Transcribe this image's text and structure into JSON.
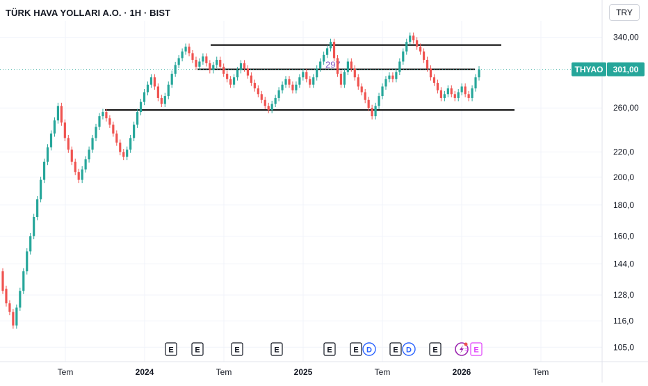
{
  "header": {
    "title": "TÜRK HAVA YOLLARI A.O. · 1H · BIST",
    "currency": "TRY"
  },
  "price_badge": {
    "symbol": "THYAO",
    "value": "301,00",
    "color": "#26a69a"
  },
  "colors": {
    "up": "#26a69a",
    "down": "#ef5350",
    "grid": "#f0f3fa",
    "text": "#131722",
    "line": "#000000",
    "event_dividend": "#2962ff",
    "event_split": "#e040fb"
  },
  "chart_data": {
    "type": "candlestick",
    "scale": "log",
    "ylim": [
      101,
      356
    ],
    "y_ticks": [
      {
        "value": 340,
        "label": "340,00"
      },
      {
        "value": 260,
        "label": "260,00"
      },
      {
        "value": 220,
        "label": "220,0"
      },
      {
        "value": 200,
        "label": "200,0"
      },
      {
        "value": 180,
        "label": "180,0"
      },
      {
        "value": 160,
        "label": "160,0"
      },
      {
        "value": 144,
        "label": "144,0"
      },
      {
        "value": 128,
        "label": "128,0"
      },
      {
        "value": 116,
        "label": "116,0"
      },
      {
        "value": 105,
        "label": "105,0"
      }
    ],
    "x_ticks": [
      {
        "date": "2023-07",
        "label": "Tem"
      },
      {
        "date": "2024-01",
        "label": "2024"
      },
      {
        "date": "2024-07",
        "label": "Tem"
      },
      {
        "date": "2025-01",
        "label": "2025"
      },
      {
        "date": "2025-07",
        "label": "Tem"
      },
      {
        "date": "2026-01",
        "label": "2026"
      },
      {
        "date": "2026-07",
        "label": "Tem"
      }
    ],
    "last_price": 301,
    "annotation": "297",
    "trendlines": [
      {
        "from": "2024-06",
        "to": "2026-04",
        "value": 330
      },
      {
        "from": "2024-05",
        "to": "2026-02",
        "value": 301
      },
      {
        "from": "2023-10",
        "to": "2026-05",
        "value": 258
      }
    ],
    "events": [
      {
        "date": "2024-03",
        "type": "E",
        "label": "E"
      },
      {
        "date": "2024-05",
        "type": "E",
        "label": "E"
      },
      {
        "date": "2024-08",
        "type": "E",
        "label": "E"
      },
      {
        "date": "2024-11",
        "type": "E",
        "label": "E"
      },
      {
        "date": "2025-03",
        "type": "E",
        "label": "E"
      },
      {
        "date": "2025-05",
        "type": "E",
        "label": "E"
      },
      {
        "date": "2025-06",
        "type": "D",
        "label": "D"
      },
      {
        "date": "2025-08",
        "type": "E",
        "label": "E"
      },
      {
        "date": "2025-09",
        "type": "D",
        "label": "D"
      },
      {
        "date": "2025-11",
        "type": "E",
        "label": "E"
      },
      {
        "date": "2026-01",
        "type": "S",
        "label": ""
      },
      {
        "date": "2026-02",
        "type": "E2",
        "label": "E"
      }
    ],
    "candles": [
      [
        0,
        140,
        130
      ],
      [
        1,
        131,
        124
      ],
      [
        2,
        124,
        120
      ],
      [
        3,
        120,
        114
      ],
      [
        4,
        114,
        122
      ],
      [
        5,
        122,
        130
      ],
      [
        6,
        130,
        140
      ],
      [
        7,
        140,
        151
      ],
      [
        8,
        151,
        160
      ],
      [
        9,
        160,
        172
      ],
      [
        10,
        172,
        184
      ],
      [
        11,
        184,
        198
      ],
      [
        12,
        198,
        212
      ],
      [
        13,
        212,
        224
      ],
      [
        14,
        224,
        236
      ],
      [
        15,
        236,
        248
      ],
      [
        16,
        248,
        262
      ],
      [
        17,
        262,
        246
      ],
      [
        18,
        246,
        232
      ],
      [
        19,
        232,
        222
      ],
      [
        20,
        222,
        212
      ],
      [
        21,
        212,
        204
      ],
      [
        22,
        204,
        198
      ],
      [
        23,
        198,
        206
      ],
      [
        24,
        206,
        214
      ],
      [
        25,
        214,
        222
      ],
      [
        26,
        222,
        232
      ],
      [
        27,
        232,
        242
      ],
      [
        28,
        242,
        252
      ],
      [
        29,
        252,
        256
      ],
      [
        30,
        256,
        250
      ],
      [
        31,
        250,
        244
      ],
      [
        32,
        244,
        236
      ],
      [
        33,
        236,
        228
      ],
      [
        34,
        228,
        220
      ],
      [
        35,
        220,
        216
      ],
      [
        36,
        216,
        222
      ],
      [
        37,
        222,
        232
      ],
      [
        38,
        232,
        244
      ],
      [
        39,
        244,
        256
      ],
      [
        40,
        256,
        266
      ],
      [
        41,
        266,
        276
      ],
      [
        42,
        276,
        284
      ],
      [
        43,
        284,
        292
      ],
      [
        44,
        292,
        282
      ],
      [
        45,
        282,
        270
      ],
      [
        46,
        270,
        264
      ],
      [
        47,
        264,
        272
      ],
      [
        48,
        272,
        284
      ],
      [
        49,
        284,
        296
      ],
      [
        50,
        296,
        306
      ],
      [
        51,
        306,
        314
      ],
      [
        52,
        314,
        322
      ],
      [
        53,
        322,
        328
      ],
      [
        54,
        328,
        320
      ],
      [
        55,
        320,
        312
      ],
      [
        56,
        312,
        304
      ],
      [
        57,
        304,
        310
      ],
      [
        58,
        310,
        316
      ],
      [
        59,
        316,
        308
      ],
      [
        60,
        308,
        300
      ],
      [
        61,
        300,
        306
      ],
      [
        62,
        306,
        312
      ],
      [
        63,
        312,
        304
      ],
      [
        64,
        304,
        296
      ],
      [
        65,
        296,
        290
      ],
      [
        66,
        290,
        284
      ],
      [
        67,
        284,
        292
      ],
      [
        68,
        292,
        300
      ],
      [
        69,
        300,
        308
      ],
      [
        70,
        308,
        302
      ],
      [
        71,
        302,
        294
      ],
      [
        72,
        294,
        286
      ],
      [
        73,
        286,
        280
      ],
      [
        74,
        280,
        274
      ],
      [
        75,
        274,
        268
      ],
      [
        76,
        268,
        262
      ],
      [
        77,
        262,
        258
      ],
      [
        78,
        258,
        264
      ],
      [
        79,
        264,
        270
      ],
      [
        80,
        270,
        278
      ],
      [
        81,
        278,
        284
      ],
      [
        82,
        284,
        290
      ],
      [
        83,
        290,
        284
      ],
      [
        84,
        284,
        278
      ],
      [
        85,
        278,
        284
      ],
      [
        86,
        284,
        292
      ],
      [
        87,
        292,
        298
      ],
      [
        88,
        298,
        290
      ],
      [
        89,
        290,
        284
      ],
      [
        90,
        284,
        292
      ],
      [
        91,
        292,
        302
      ],
      [
        92,
        302,
        310
      ],
      [
        93,
        310,
        318
      ],
      [
        94,
        318,
        326
      ],
      [
        95,
        326,
        334
      ],
      [
        96,
        334,
        314
      ],
      [
        97,
        314,
        296
      ],
      [
        98,
        296,
        284
      ],
      [
        99,
        284,
        298
      ],
      [
        100,
        298,
        310
      ],
      [
        101,
        310,
        302
      ],
      [
        102,
        302,
        292
      ],
      [
        103,
        292,
        282
      ],
      [
        104,
        282,
        276
      ],
      [
        105,
        276,
        268
      ],
      [
        106,
        268,
        260
      ],
      [
        107,
        260,
        252
      ],
      [
        108,
        252,
        262
      ],
      [
        109,
        262,
        272
      ],
      [
        110,
        272,
        282
      ],
      [
        111,
        282,
        290
      ],
      [
        112,
        290,
        294
      ],
      [
        113,
        294,
        290
      ],
      [
        114,
        290,
        298
      ],
      [
        115,
        298,
        310
      ],
      [
        116,
        310,
        322
      ],
      [
        117,
        322,
        334
      ],
      [
        118,
        334,
        342
      ],
      [
        119,
        342,
        336
      ],
      [
        120,
        336,
        328
      ],
      [
        121,
        328,
        322
      ],
      [
        122,
        322,
        312
      ],
      [
        123,
        312,
        302
      ],
      [
        124,
        302,
        292
      ],
      [
        125,
        292,
        286
      ],
      [
        126,
        286,
        278
      ],
      [
        127,
        278,
        270
      ],
      [
        128,
        270,
        274
      ],
      [
        129,
        274,
        280
      ],
      [
        130,
        280,
        274
      ],
      [
        131,
        274,
        270
      ],
      [
        132,
        270,
        276
      ],
      [
        133,
        276,
        282
      ],
      [
        134,
        282,
        274
      ],
      [
        135,
        274,
        270
      ],
      [
        136,
        270,
        280
      ],
      [
        137,
        280,
        292
      ],
      [
        138,
        292,
        301
      ]
    ]
  }
}
